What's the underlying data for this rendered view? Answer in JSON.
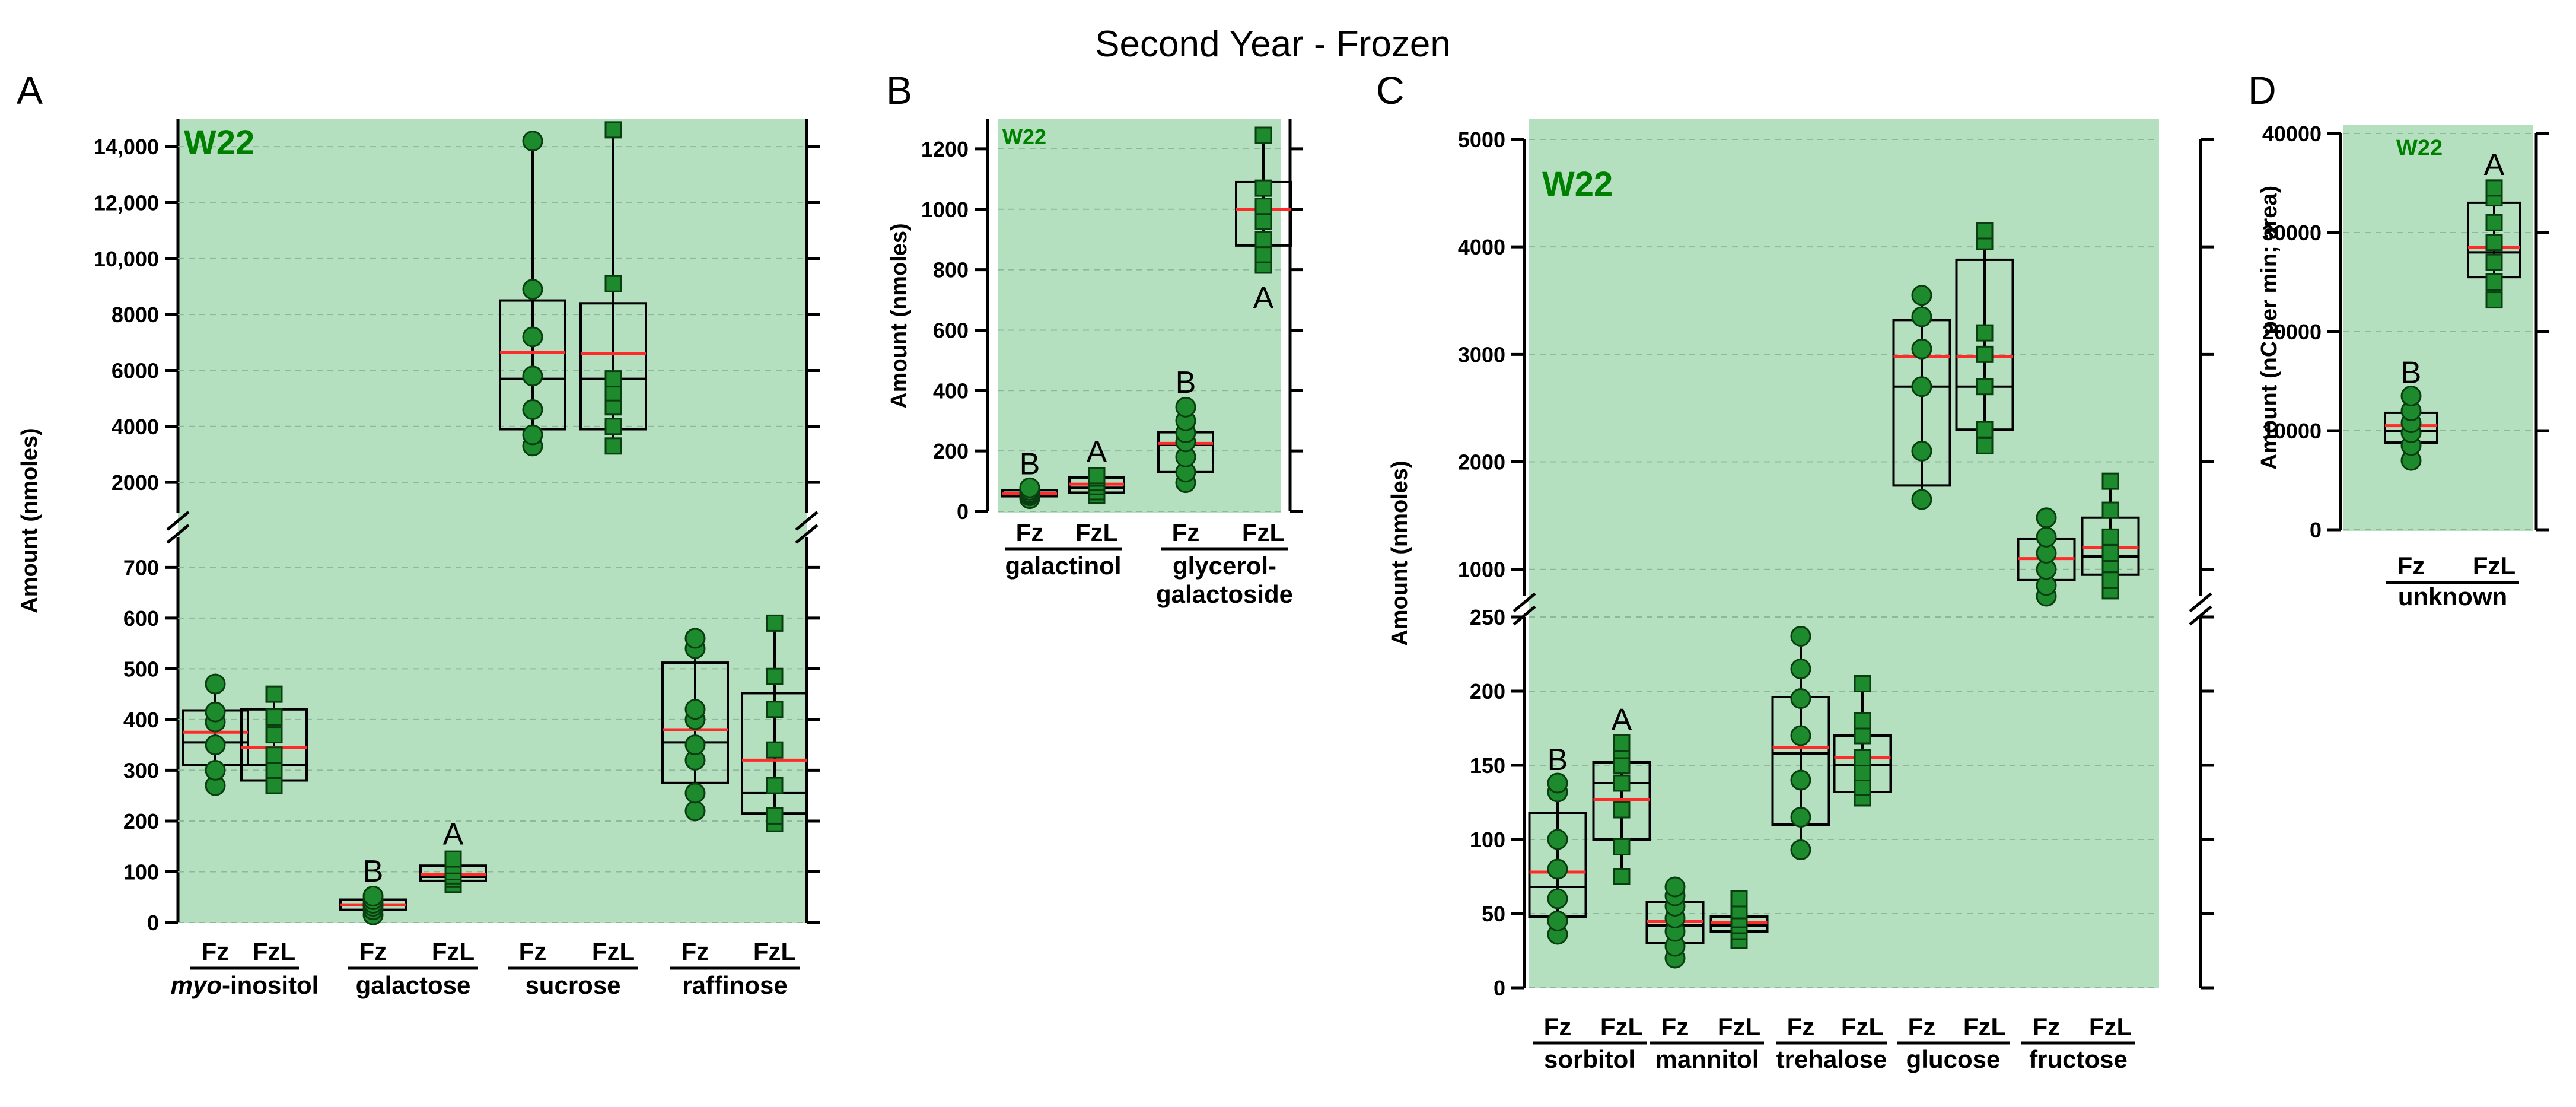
{
  "title": "Second Year - Frozen",
  "colors": {
    "plot_bg": "#b5e0c0",
    "point": "#1e8a2e",
    "point_edge": "#0a3d10",
    "median": "#000000",
    "mean": "#ff2a2a",
    "strain_label": "#008000"
  },
  "chart_data": [
    {
      "panel": "A",
      "type": "box",
      "strain": "W22",
      "ylabel": "Amount (nmoles)",
      "axis_break": true,
      "segments": [
        {
          "ylim": [
            0,
            760
          ],
          "ticks": [
            0,
            100,
            200,
            300,
            400,
            500,
            600,
            700
          ]
        },
        {
          "ylim": [
            900,
            15000
          ],
          "ticks": [
            2000,
            4000,
            6000,
            8000,
            10000,
            12000,
            14000
          ]
        }
      ],
      "categories": [
        "Fz",
        "FzL",
        "Fz",
        "FzL",
        "Fz",
        "FzL",
        "Fz",
        "FzL"
      ],
      "groups": [
        {
          "label": "myo-inositol",
          "italic_prefix": "myo",
          "suffix": "-inositol"
        },
        {
          "label": "galactose"
        },
        {
          "label": "sucrose"
        },
        {
          "label": "raffinose"
        }
      ],
      "boxes": [
        {
          "q1": 310,
          "median": 355,
          "mean": 375,
          "q3": 418,
          "min": 270,
          "max": 470,
          "points": [
            270,
            300,
            350,
            395,
            415,
            470
          ],
          "marker": "circle"
        },
        {
          "q1": 280,
          "median": 310,
          "mean": 345,
          "q3": 420,
          "min": 268,
          "max": 455,
          "points": [
            270,
            300,
            330,
            370,
            405,
            450
          ],
          "marker": "square"
        },
        {
          "q1": 25,
          "median": 35,
          "mean": 35,
          "q3": 45,
          "min": 12,
          "max": 55,
          "points": [
            15,
            25,
            32,
            38,
            45,
            52
          ],
          "marker": "circle",
          "letter": "B"
        },
        {
          "q1": 82,
          "median": 90,
          "mean": 95,
          "q3": 112,
          "min": 72,
          "max": 128,
          "points": [
            75,
            85,
            92,
            100,
            112,
            125
          ],
          "marker": "square",
          "letter": "A"
        },
        {
          "q1": 3900,
          "median": 5700,
          "mean": 6650,
          "q3": 8500,
          "min": 3200,
          "max": 14200,
          "points": [
            3300,
            3700,
            4600,
            5800,
            7200,
            8900,
            14200
          ],
          "marker": "circle"
        },
        {
          "q1": 3900,
          "median": 5700,
          "mean": 6600,
          "q3": 8400,
          "min": 3200,
          "max": 14600,
          "points": [
            3300,
            4000,
            4700,
            5200,
            5700,
            9100,
            14600
          ],
          "marker": "square"
        },
        {
          "q1": 275,
          "median": 355,
          "mean": 380,
          "q3": 512,
          "min": 218,
          "max": 565,
          "points": [
            220,
            255,
            320,
            350,
            400,
            420,
            540,
            560
          ],
          "marker": "circle"
        },
        {
          "q1": 215,
          "median": 255,
          "mean": 320,
          "q3": 452,
          "min": 192,
          "max": 590,
          "points": [
            195,
            210,
            270,
            340,
            420,
            485,
            590
          ],
          "marker": "square"
        }
      ]
    },
    {
      "panel": "B",
      "type": "box",
      "strain": "W22",
      "ylabel": "Amount (nmoles)",
      "ylim": [
        0,
        1300
      ],
      "ticks": [
        0,
        200,
        400,
        600,
        800,
        1000,
        1200
      ],
      "categories": [
        "Fz",
        "FzL",
        "Fz",
        "FzL"
      ],
      "groups": [
        {
          "label": "galactinol"
        },
        {
          "label": "glycerol-",
          "label2": "galactoside"
        }
      ],
      "boxes": [
        {
          "q1": 50,
          "median": 58,
          "mean": 60,
          "q3": 70,
          "min": 40,
          "max": 80,
          "points": [
            42,
            52,
            58,
            63,
            70,
            78
          ],
          "marker": "circle",
          "letter": "B"
        },
        {
          "q1": 62,
          "median": 78,
          "mean": 90,
          "q3": 112,
          "min": 50,
          "max": 120,
          "points": [
            52,
            65,
            82,
            95,
            110,
            118
          ],
          "marker": "square",
          "letter": "A"
        },
        {
          "q1": 130,
          "median": 220,
          "mean": 225,
          "q3": 262,
          "min": 90,
          "max": 350,
          "points": [
            95,
            130,
            180,
            230,
            260,
            300,
            345
          ],
          "marker": "circle",
          "letter": "B"
        },
        {
          "q1": 880,
          "median": 1000,
          "mean": 1000,
          "q3": 1090,
          "min": 810,
          "max": 1250,
          "points": [
            815,
            850,
            900,
            960,
            1010,
            1070,
            1245
          ],
          "marker": "square",
          "letter": "A",
          "letter_pos": "below"
        }
      ]
    },
    {
      "panel": "C",
      "type": "box",
      "strain": "W22",
      "ylabel": "Amount (nmoles)",
      "axis_break": true,
      "segments": [
        {
          "ylim": [
            0,
            250
          ],
          "ticks": [
            0,
            50,
            100,
            150,
            200,
            250
          ]
        },
        {
          "ylim": [
            750,
            5000
          ],
          "ticks": [
            1000,
            2000,
            3000,
            4000,
            5000
          ]
        }
      ],
      "categories": [
        "Fz",
        "FzL",
        "Fz",
        "FzL",
        "Fz",
        "FzL",
        "Fz",
        "FzL",
        "Fz",
        "FzL"
      ],
      "groups": [
        {
          "label": "sorbitol"
        },
        {
          "label": "mannitol"
        },
        {
          "label": "trehalose"
        },
        {
          "label": "glucose"
        },
        {
          "label": "fructose"
        }
      ],
      "boxes": [
        {
          "q1": 48,
          "median": 68,
          "mean": 78,
          "q3": 118,
          "min": 36,
          "max": 138,
          "points": [
            36,
            45,
            60,
            80,
            100,
            132,
            138
          ],
          "marker": "circle",
          "letter": "B"
        },
        {
          "q1": 100,
          "median": 138,
          "mean": 127,
          "q3": 152,
          "min": 75,
          "max": 165,
          "points": [
            75,
            95,
            120,
            138,
            150,
            160,
            165
          ],
          "marker": "square",
          "letter": "A"
        },
        {
          "q1": 30,
          "median": 42,
          "mean": 45,
          "q3": 58,
          "min": 20,
          "max": 68,
          "points": [
            20,
            28,
            38,
            47,
            55,
            62,
            68
          ],
          "marker": "circle"
        },
        {
          "q1": 38,
          "median": 42,
          "mean": 44,
          "q3": 48,
          "min": 32,
          "max": 60,
          "points": [
            32,
            38,
            42,
            46,
            52,
            60
          ],
          "marker": "square"
        },
        {
          "q1": 110,
          "median": 158,
          "mean": 162,
          "q3": 196,
          "min": 93,
          "max": 237,
          "points": [
            93,
            115,
            140,
            170,
            195,
            215,
            237
          ],
          "marker": "circle"
        },
        {
          "q1": 132,
          "median": 150,
          "mean": 155,
          "q3": 170,
          "min": 128,
          "max": 205,
          "points": [
            128,
            135,
            145,
            155,
            170,
            180,
            205
          ],
          "marker": "square"
        },
        {
          "q1": 1780,
          "median": 2700,
          "mean": 2980,
          "q3": 3320,
          "min": 1650,
          "max": 3550,
          "points": [
            1650,
            2100,
            2700,
            3050,
            3350,
            3550
          ],
          "marker": "circle"
        },
        {
          "q1": 2300,
          "median": 2700,
          "mean": 2980,
          "q3": 3880,
          "min": 2150,
          "max": 4150,
          "points": [
            2150,
            2300,
            2700,
            3000,
            3200,
            4050,
            4150
          ],
          "marker": "square"
        },
        {
          "q1": 900,
          "median": 1100,
          "mean": 1100,
          "q3": 1280,
          "min": 650,
          "max": 1480,
          "points": [
            650,
            850,
            1000,
            1150,
            1300,
            1480
          ],
          "marker": "circle"
        },
        {
          "q1": 950,
          "median": 1120,
          "mean": 1200,
          "q3": 1480,
          "min": 800,
          "max": 1820,
          "points": [
            800,
            900,
            1050,
            1150,
            1300,
            1550,
            1820
          ],
          "marker": "square"
        }
      ]
    },
    {
      "panel": "D",
      "type": "box",
      "strain": "W22",
      "ylabel": "Amount (nC per min; area)",
      "ylim": [
        0,
        40000
      ],
      "ticks": [
        0,
        10000,
        20000,
        30000,
        40000
      ],
      "tick_labels": [
        "0",
        "10000",
        "20000",
        "30000",
        "40000"
      ],
      "categories": [
        "Fz",
        "FzL"
      ],
      "groups": [
        {
          "label": "unknown"
        }
      ],
      "boxes": [
        {
          "q1": 8800,
          "median": 10000,
          "mean": 10500,
          "q3": 11800,
          "min": 7000,
          "max": 13500,
          "points": [
            7000,
            8500,
            9800,
            10800,
            12000,
            13500
          ],
          "marker": "circle",
          "letter": "B"
        },
        {
          "q1": 25500,
          "median": 28000,
          "mean": 28500,
          "q3": 33000,
          "min": 23200,
          "max": 34500,
          "points": [
            23200,
            25000,
            27000,
            29000,
            31000,
            33500,
            34500
          ],
          "marker": "square",
          "letter": "A"
        }
      ]
    }
  ]
}
